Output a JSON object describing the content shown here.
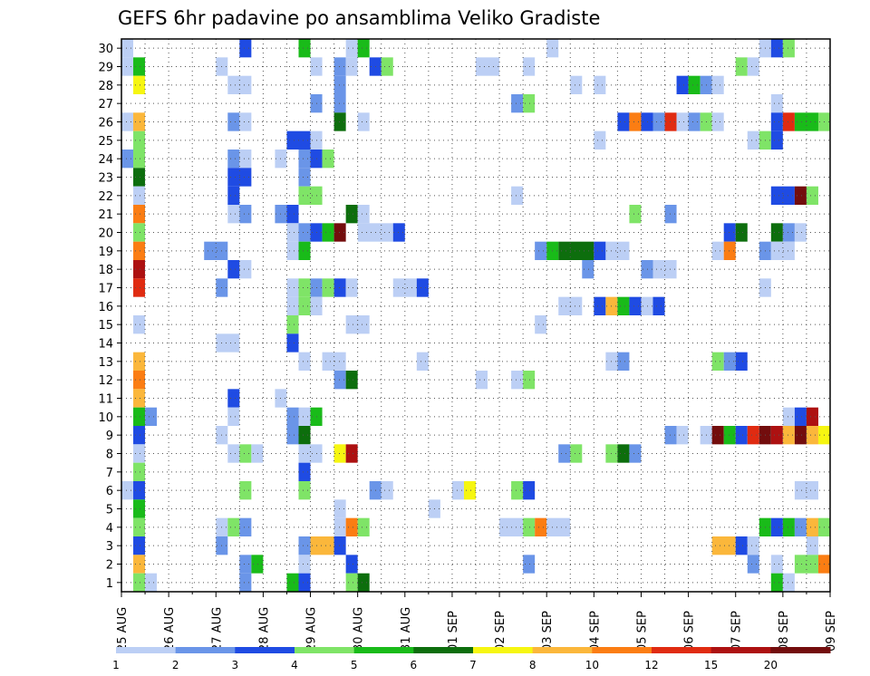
{
  "chart_data": {
    "type": "heatmap",
    "title": "GEFS 6hr padavine po ansamblima Veliko Gradiste",
    "xlabel": "",
    "ylabel": "",
    "x_tick_labels": [
      "25 AUG",
      "26 AUG",
      "27 AUG",
      "28 AUG",
      "29 AUG",
      "30 AUG",
      "31 AUG",
      "01 SEP",
      "02 SEP",
      "03 SEP",
      "04 SEP",
      "05 SEP",
      "06 SEP",
      "07 SEP",
      "08 SEP",
      "09 SEP"
    ],
    "x_steps_per_day": 4,
    "x_range": [
      0,
      60
    ],
    "y_tick_labels": [
      "1",
      "2",
      "3",
      "4",
      "5",
      "6",
      "7",
      "8",
      "9",
      "10",
      "11",
      "12",
      "13",
      "14",
      "15",
      "16",
      "17",
      "18",
      "19",
      "20",
      "21",
      "22",
      "23",
      "24",
      "25",
      "26",
      "27",
      "28",
      "29",
      "30"
    ],
    "y_range": [
      1,
      30
    ],
    "grid": true,
    "colorbar": {
      "labels": [
        "1",
        "2",
        "3",
        "4",
        "5",
        "6",
        "7",
        "8",
        "10",
        "12",
        "15",
        "20"
      ],
      "colors": [
        "#bccff5",
        "#6a95e8",
        "#1f4be3",
        "#7fe467",
        "#19bb19",
        "#0d6e0d",
        "#f6f611",
        "#fbb73b",
        "#fb7d13",
        "#e02b11",
        "#ad1111",
        "#730d0d"
      ]
    },
    "cells_note": "each cell: [member_row(1-30), step_start(0-59), step_count, color_class(1-12)]",
    "cells": [
      [
        30,
        0,
        1,
        1
      ],
      [
        30,
        10,
        1,
        3
      ],
      [
        30,
        15,
        1,
        5
      ],
      [
        30,
        19,
        1,
        1
      ],
      [
        30,
        20,
        1,
        5
      ],
      [
        30,
        36,
        1,
        1
      ],
      [
        30,
        54,
        1,
        1
      ],
      [
        30,
        55,
        1,
        3
      ],
      [
        30,
        56,
        1,
        4
      ],
      [
        29,
        0,
        1,
        1
      ],
      [
        29,
        1,
        1,
        5
      ],
      [
        29,
        8,
        1,
        1
      ],
      [
        29,
        16,
        1,
        1
      ],
      [
        29,
        18,
        1,
        2
      ],
      [
        29,
        19,
        1,
        1
      ],
      [
        29,
        21,
        1,
        3
      ],
      [
        29,
        22,
        1,
        4
      ],
      [
        29,
        30,
        2,
        1
      ],
      [
        29,
        34,
        1,
        1
      ],
      [
        29,
        52,
        1,
        4
      ],
      [
        29,
        53,
        1,
        1
      ],
      [
        28,
        1,
        1,
        7
      ],
      [
        28,
        9,
        2,
        1
      ],
      [
        28,
        18,
        1,
        2
      ],
      [
        28,
        38,
        1,
        1
      ],
      [
        28,
        40,
        1,
        1
      ],
      [
        28,
        47,
        1,
        3
      ],
      [
        28,
        48,
        1,
        5
      ],
      [
        28,
        49,
        1,
        2
      ],
      [
        28,
        50,
        1,
        1
      ],
      [
        27,
        16,
        1,
        2
      ],
      [
        27,
        18,
        1,
        2
      ],
      [
        27,
        33,
        1,
        2
      ],
      [
        27,
        34,
        1,
        4
      ],
      [
        27,
        55,
        1,
        1
      ],
      [
        26,
        0,
        1,
        1
      ],
      [
        26,
        1,
        1,
        8
      ],
      [
        26,
        9,
        1,
        2
      ],
      [
        26,
        10,
        1,
        1
      ],
      [
        26,
        18,
        1,
        6
      ],
      [
        26,
        20,
        1,
        1
      ],
      [
        26,
        42,
        1,
        3
      ],
      [
        26,
        43,
        1,
        9
      ],
      [
        26,
        44,
        1,
        3
      ],
      [
        26,
        45,
        1,
        2
      ],
      [
        26,
        46,
        1,
        10
      ],
      [
        26,
        47,
        1,
        1
      ],
      [
        26,
        48,
        1,
        2
      ],
      [
        26,
        49,
        1,
        4
      ],
      [
        26,
        50,
        1,
        1
      ],
      [
        26,
        55,
        1,
        3
      ],
      [
        26,
        56,
        1,
        10
      ],
      [
        26,
        57,
        2,
        5
      ],
      [
        26,
        59,
        1,
        4
      ],
      [
        25,
        1,
        1,
        4
      ],
      [
        25,
        14,
        2,
        3
      ],
      [
        25,
        16,
        1,
        1
      ],
      [
        25,
        40,
        1,
        1
      ],
      [
        25,
        53,
        1,
        1
      ],
      [
        25,
        54,
        1,
        4
      ],
      [
        25,
        55,
        1,
        3
      ],
      [
        24,
        0,
        1,
        2
      ],
      [
        24,
        1,
        1,
        4
      ],
      [
        24,
        9,
        1,
        2
      ],
      [
        24,
        10,
        1,
        1
      ],
      [
        24,
        13,
        1,
        1
      ],
      [
        24,
        15,
        1,
        2
      ],
      [
        24,
        16,
        1,
        3
      ],
      [
        24,
        17,
        1,
        4
      ],
      [
        23,
        1,
        1,
        6
      ],
      [
        23,
        9,
        2,
        3
      ],
      [
        23,
        15,
        1,
        2
      ],
      [
        22,
        1,
        1,
        1
      ],
      [
        22,
        9,
        1,
        3
      ],
      [
        22,
        15,
        2,
        4
      ],
      [
        22,
        33,
        1,
        1
      ],
      [
        22,
        55,
        2,
        3
      ],
      [
        22,
        57,
        1,
        12
      ],
      [
        22,
        58,
        1,
        4
      ],
      [
        21,
        1,
        1,
        9
      ],
      [
        21,
        9,
        1,
        1
      ],
      [
        21,
        10,
        1,
        2
      ],
      [
        21,
        13,
        1,
        2
      ],
      [
        21,
        14,
        1,
        3
      ],
      [
        21,
        19,
        1,
        6
      ],
      [
        21,
        20,
        1,
        1
      ],
      [
        21,
        43,
        1,
        4
      ],
      [
        21,
        46,
        1,
        2
      ],
      [
        20,
        1,
        1,
        4
      ],
      [
        20,
        14,
        1,
        1
      ],
      [
        20,
        15,
        1,
        2
      ],
      [
        20,
        16,
        1,
        3
      ],
      [
        20,
        17,
        1,
        5
      ],
      [
        20,
        18,
        1,
        12
      ],
      [
        20,
        20,
        3,
        1
      ],
      [
        20,
        23,
        1,
        3
      ],
      [
        20,
        51,
        1,
        3
      ],
      [
        20,
        52,
        1,
        6
      ],
      [
        20,
        55,
        1,
        6
      ],
      [
        20,
        56,
        1,
        2
      ],
      [
        20,
        57,
        1,
        1
      ],
      [
        19,
        1,
        1,
        9
      ],
      [
        19,
        7,
        2,
        2
      ],
      [
        19,
        14,
        1,
        1
      ],
      [
        19,
        15,
        1,
        5
      ],
      [
        19,
        35,
        1,
        2
      ],
      [
        19,
        36,
        1,
        5
      ],
      [
        19,
        37,
        3,
        6
      ],
      [
        19,
        40,
        1,
        3
      ],
      [
        19,
        41,
        2,
        1
      ],
      [
        19,
        50,
        1,
        1
      ],
      [
        19,
        51,
        1,
        9
      ],
      [
        19,
        54,
        1,
        2
      ],
      [
        19,
        55,
        2,
        1
      ],
      [
        18,
        1,
        1,
        11
      ],
      [
        18,
        9,
        1,
        3
      ],
      [
        18,
        10,
        1,
        1
      ],
      [
        18,
        39,
        1,
        2
      ],
      [
        18,
        44,
        1,
        2
      ],
      [
        18,
        45,
        2,
        1
      ],
      [
        17,
        1,
        1,
        10
      ],
      [
        17,
        8,
        1,
        2
      ],
      [
        17,
        14,
        1,
        1
      ],
      [
        17,
        15,
        1,
        4
      ],
      [
        17,
        16,
        1,
        2
      ],
      [
        17,
        17,
        1,
        4
      ],
      [
        17,
        18,
        1,
        3
      ],
      [
        17,
        19,
        1,
        1
      ],
      [
        17,
        23,
        2,
        1
      ],
      [
        17,
        25,
        1,
        3
      ],
      [
        17,
        54,
        1,
        1
      ],
      [
        16,
        14,
        1,
        1
      ],
      [
        16,
        15,
        1,
        4
      ],
      [
        16,
        16,
        1,
        1
      ],
      [
        16,
        37,
        2,
        1
      ],
      [
        16,
        40,
        1,
        3
      ],
      [
        16,
        41,
        1,
        8
      ],
      [
        16,
        42,
        1,
        5
      ],
      [
        16,
        43,
        1,
        3
      ],
      [
        16,
        44,
        1,
        1
      ],
      [
        16,
        45,
        1,
        3
      ],
      [
        15,
        1,
        1,
        1
      ],
      [
        15,
        14,
        1,
        4
      ],
      [
        15,
        19,
        2,
        1
      ],
      [
        15,
        35,
        1,
        1
      ],
      [
        14,
        8,
        2,
        1
      ],
      [
        14,
        14,
        1,
        3
      ],
      [
        13,
        1,
        1,
        8
      ],
      [
        13,
        15,
        1,
        1
      ],
      [
        13,
        17,
        2,
        1
      ],
      [
        13,
        25,
        1,
        1
      ],
      [
        13,
        41,
        1,
        1
      ],
      [
        13,
        42,
        1,
        2
      ],
      [
        13,
        50,
        1,
        4
      ],
      [
        13,
        51,
        1,
        2
      ],
      [
        13,
        52,
        1,
        3
      ],
      [
        12,
        1,
        1,
        9
      ],
      [
        12,
        18,
        1,
        2
      ],
      [
        12,
        19,
        1,
        6
      ],
      [
        12,
        30,
        1,
        1
      ],
      [
        12,
        33,
        1,
        1
      ],
      [
        12,
        34,
        1,
        4
      ],
      [
        11,
        1,
        1,
        8
      ],
      [
        11,
        9,
        1,
        3
      ],
      [
        11,
        13,
        1,
        1
      ],
      [
        10,
        1,
        1,
        5
      ],
      [
        10,
        2,
        1,
        2
      ],
      [
        10,
        9,
        1,
        1
      ],
      [
        10,
        14,
        1,
        2
      ],
      [
        10,
        15,
        1,
        1
      ],
      [
        10,
        16,
        1,
        5
      ],
      [
        10,
        56,
        1,
        1
      ],
      [
        10,
        57,
        1,
        3
      ],
      [
        10,
        58,
        1,
        11
      ],
      [
        9,
        1,
        1,
        3
      ],
      [
        9,
        8,
        1,
        1
      ],
      [
        9,
        14,
        1,
        2
      ],
      [
        9,
        15,
        1,
        6
      ],
      [
        9,
        46,
        1,
        2
      ],
      [
        9,
        47,
        1,
        1
      ],
      [
        9,
        49,
        1,
        1
      ],
      [
        9,
        50,
        1,
        12
      ],
      [
        9,
        51,
        1,
        5
      ],
      [
        9,
        52,
        1,
        3
      ],
      [
        9,
        53,
        1,
        10
      ],
      [
        9,
        54,
        1,
        12
      ],
      [
        9,
        55,
        1,
        11
      ],
      [
        9,
        56,
        1,
        8
      ],
      [
        9,
        57,
        1,
        12
      ],
      [
        9,
        58,
        1,
        8
      ],
      [
        9,
        59,
        1,
        7
      ],
      [
        8,
        1,
        1,
        1
      ],
      [
        8,
        9,
        1,
        1
      ],
      [
        8,
        10,
        1,
        4
      ],
      [
        8,
        11,
        1,
        1
      ],
      [
        8,
        15,
        2,
        1
      ],
      [
        8,
        18,
        1,
        7
      ],
      [
        8,
        19,
        1,
        11
      ],
      [
        8,
        37,
        1,
        2
      ],
      [
        8,
        38,
        1,
        4
      ],
      [
        8,
        41,
        1,
        4
      ],
      [
        8,
        42,
        1,
        6
      ],
      [
        8,
        43,
        1,
        2
      ],
      [
        7,
        1,
        1,
        4
      ],
      [
        7,
        15,
        1,
        3
      ],
      [
        6,
        0,
        1,
        1
      ],
      [
        6,
        1,
        1,
        3
      ],
      [
        6,
        10,
        1,
        4
      ],
      [
        6,
        15,
        1,
        4
      ],
      [
        6,
        21,
        1,
        2
      ],
      [
        6,
        22,
        1,
        1
      ],
      [
        6,
        28,
        1,
        1
      ],
      [
        6,
        29,
        1,
        7
      ],
      [
        6,
        33,
        1,
        4
      ],
      [
        6,
        34,
        1,
        3
      ],
      [
        6,
        57,
        2,
        1
      ],
      [
        5,
        1,
        1,
        5
      ],
      [
        5,
        18,
        1,
        1
      ],
      [
        5,
        26,
        1,
        1
      ],
      [
        4,
        1,
        1,
        4
      ],
      [
        4,
        8,
        1,
        1
      ],
      [
        4,
        9,
        1,
        4
      ],
      [
        4,
        10,
        1,
        2
      ],
      [
        4,
        18,
        1,
        1
      ],
      [
        4,
        19,
        1,
        9
      ],
      [
        4,
        20,
        1,
        4
      ],
      [
        4,
        32,
        2,
        1
      ],
      [
        4,
        34,
        1,
        4
      ],
      [
        4,
        35,
        1,
        9
      ],
      [
        4,
        36,
        2,
        1
      ],
      [
        4,
        54,
        1,
        5
      ],
      [
        4,
        55,
        1,
        3
      ],
      [
        4,
        56,
        1,
        5
      ],
      [
        4,
        57,
        1,
        2
      ],
      [
        4,
        58,
        1,
        8
      ],
      [
        4,
        59,
        1,
        4
      ],
      [
        3,
        1,
        1,
        3
      ],
      [
        3,
        8,
        1,
        2
      ],
      [
        3,
        15,
        1,
        2
      ],
      [
        3,
        16,
        2,
        8
      ],
      [
        3,
        18,
        1,
        3
      ],
      [
        3,
        50,
        2,
        8
      ],
      [
        3,
        52,
        1,
        3
      ],
      [
        3,
        53,
        1,
        1
      ],
      [
        3,
        58,
        1,
        1
      ],
      [
        2,
        1,
        1,
        8
      ],
      [
        2,
        10,
        1,
        2
      ],
      [
        2,
        11,
        1,
        5
      ],
      [
        2,
        15,
        1,
        1
      ],
      [
        2,
        19,
        1,
        3
      ],
      [
        2,
        34,
        1,
        2
      ],
      [
        2,
        53,
        1,
        2
      ],
      [
        2,
        55,
        1,
        1
      ],
      [
        2,
        57,
        2,
        4
      ],
      [
        2,
        59,
        1,
        9
      ],
      [
        1,
        1,
        1,
        4
      ],
      [
        1,
        2,
        1,
        1
      ],
      [
        1,
        10,
        1,
        2
      ],
      [
        1,
        14,
        1,
        5
      ],
      [
        1,
        15,
        1,
        3
      ],
      [
        1,
        19,
        1,
        4
      ],
      [
        1,
        20,
        1,
        6
      ],
      [
        1,
        55,
        1,
        5
      ],
      [
        1,
        56,
        1,
        1
      ]
    ]
  }
}
